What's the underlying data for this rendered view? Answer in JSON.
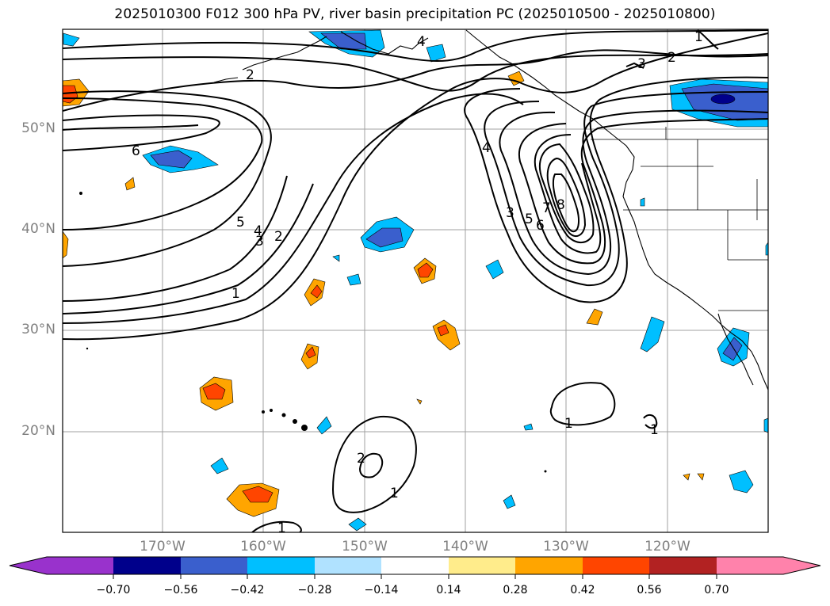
{
  "title": "2025010300 F012 300 hPa PV, river basin precipitation PC (2025010500 - 2025010800)",
  "lat_labels": [
    "50°N",
    "40°N",
    "30°N",
    "20°N"
  ],
  "lon_labels": [
    "170°W",
    "160°W",
    "150°W",
    "140°W",
    "130°W",
    "120°W"
  ],
  "colorbar": {
    "ticks": [
      "−0.70",
      "−0.56",
      "−0.42",
      "−0.28",
      "−0.14",
      "0.14",
      "0.28",
      "0.42",
      "0.56",
      "0.70"
    ],
    "colors": [
      "#9932cc",
      "#00008b",
      "#3a5fcd",
      "#00bfff",
      "#b0e2ff",
      "#ffffff",
      "#ffec8b",
      "#ffa500",
      "#ff4500",
      "#b22222",
      "#ff82ab"
    ]
  },
  "contour_labels": [
    "1",
    "2",
    "3",
    "4",
    "5",
    "6",
    "7",
    "8"
  ],
  "map_extent": {
    "lon_min": -180,
    "lon_max": -110,
    "lat_min": 10,
    "lat_max": 60
  }
}
